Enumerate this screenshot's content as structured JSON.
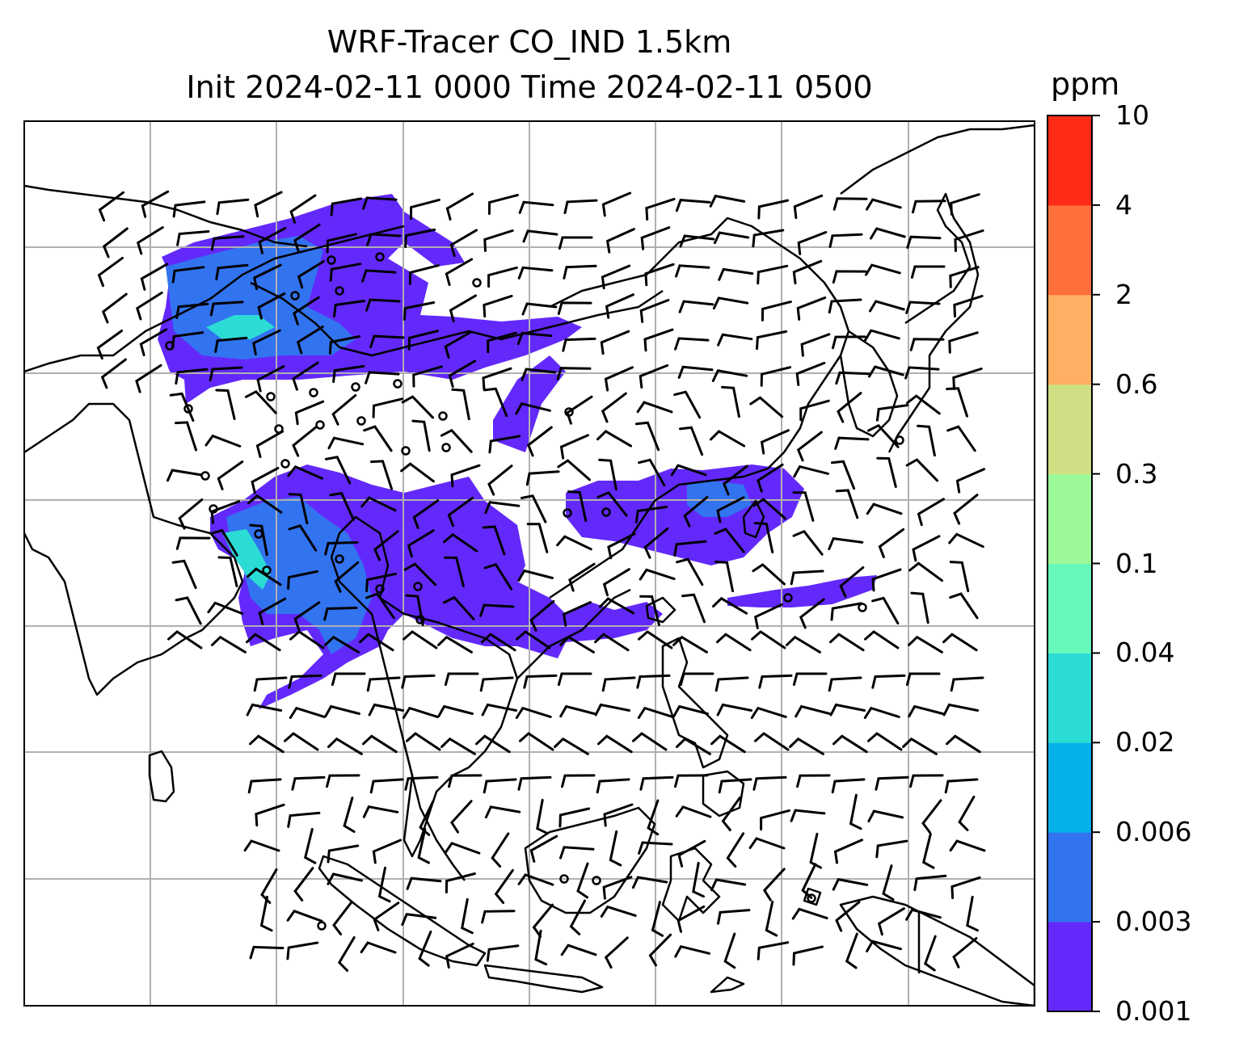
{
  "title": {
    "line1": "WRF-Tracer CO_IND 1.5km",
    "line2": "Init 2024-02-11 0000 Time 2024-02-11 0500"
  },
  "colorbar": {
    "unit": "ppm",
    "levels": [
      "0.001",
      "0.003",
      "0.006",
      "0.02",
      "0.04",
      "0.1",
      "0.3",
      "0.6",
      "2",
      "4",
      "10"
    ],
    "colors": [
      "#6329fb",
      "#3273f0",
      "#05b1ea",
      "#2bdcd5",
      "#67f9b9",
      "#9cf99a",
      "#cee083",
      "#ffb062",
      "#ff6f3c",
      "#ff2b17"
    ]
  },
  "map": {
    "field_color_low": "#6329fb",
    "field_color_mid": "#3273f0",
    "field_color_high": "#2bdcd5",
    "coastline_color": "#000000",
    "gridline_color": "#b0b0b0",
    "wind_barbs": "black barbs",
    "calm_marker": "open circle"
  }
}
